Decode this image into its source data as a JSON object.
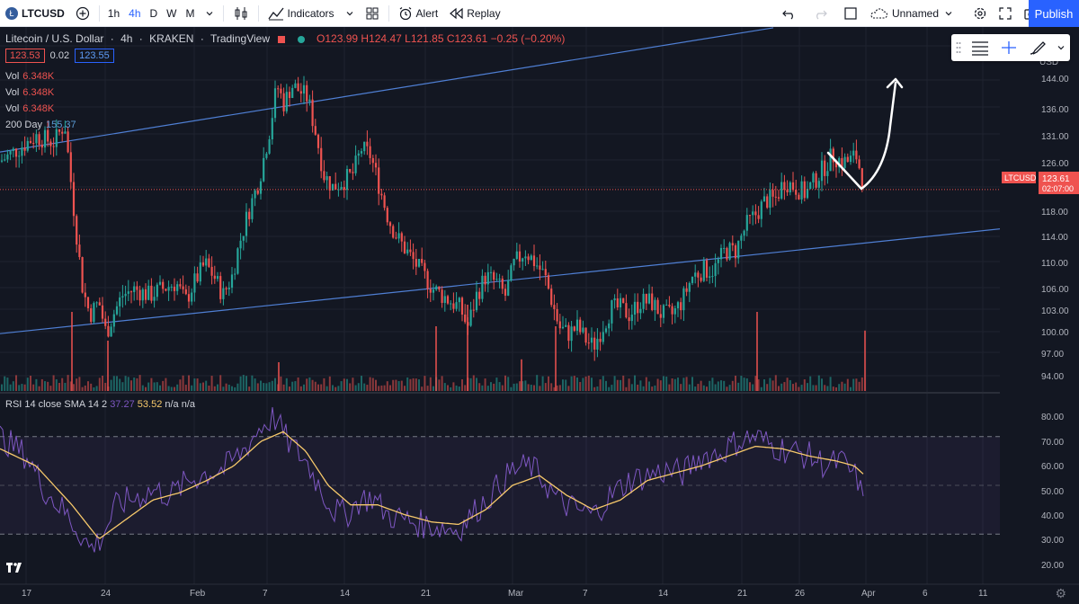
{
  "toolbar": {
    "symbol": "LTCUSD",
    "timeframes": [
      "1h",
      "4h",
      "D",
      "W",
      "M"
    ],
    "active_timeframe": "4h",
    "indicators_label": "Indicators",
    "alert_label": "Alert",
    "replay_label": "Replay",
    "layout_name": "Unnamed",
    "publish_label": "Publish"
  },
  "legend": {
    "title": "Litecoin / U.S. Dollar",
    "interval": "4h",
    "exchange": "KRAKEN",
    "source": "TradingView",
    "open": "O123.99",
    "high": "H124.47",
    "low": "L121.85",
    "close": "C123.61",
    "change": "−0.25 (−0.20%)",
    "bid": "123.53",
    "spread": "0.02",
    "ask": "123.55"
  },
  "indicators": [
    {
      "label": "Vol",
      "value": "6.348K"
    },
    {
      "label": "Vol",
      "value": "6.348K"
    },
    {
      "label": "Vol",
      "value": "6.348K"
    },
    {
      "label": "200 Day",
      "value": "155.37"
    }
  ],
  "rsi_legend": {
    "label": "RSI 14 close SMA 14 2",
    "rsi": "37.27",
    "sma": "53.52",
    "na1": "n/a",
    "na2": "n/a"
  },
  "price_axis": {
    "currency": "USD",
    "ticks": [
      "144.00",
      "136.00",
      "131.00",
      "126.00",
      "123.61",
      "118.00",
      "114.00",
      "110.00",
      "106.00",
      "103.00",
      "100.00",
      "97.00",
      "94.00"
    ],
    "last_label": "LTCUSD",
    "last_price": "123.61",
    "countdown": "02:07:00"
  },
  "rsi_axis": {
    "ticks": [
      "80.00",
      "70.00",
      "60.00",
      "50.00",
      "40.00",
      "30.00",
      "20.00"
    ]
  },
  "time_axis": {
    "ticks": [
      "17",
      "24",
      "Feb",
      "7",
      "14",
      "21",
      "Mar",
      "7",
      "14",
      "21",
      "26",
      "Apr",
      "6",
      "11"
    ]
  },
  "colors": {
    "background": "#131722",
    "up": "#26a69a",
    "down": "#ef5350",
    "trendline": "#4f7fd4",
    "rsi": "#7e57c2",
    "rsi_sma": "#f7c96b",
    "accent": "#2962ff"
  },
  "chart_data": {
    "type": "candlestick",
    "symbol": "LTCUSD",
    "interval": "4h",
    "y_range": [
      92,
      148
    ],
    "price_path": [
      [
        0,
        128
      ],
      [
        20,
        130
      ],
      [
        40,
        132
      ],
      [
        60,
        131
      ],
      [
        72,
        134
      ],
      [
        78,
        126
      ],
      [
        84,
        118
      ],
      [
        92,
        108
      ],
      [
        100,
        104
      ],
      [
        110,
        106
      ],
      [
        118,
        101
      ],
      [
        126,
        104
      ],
      [
        136,
        107
      ],
      [
        150,
        108
      ],
      [
        166,
        107
      ],
      [
        180,
        108
      ],
      [
        196,
        109
      ],
      [
        206,
        106
      ],
      [
        216,
        109
      ],
      [
        228,
        112
      ],
      [
        238,
        110
      ],
      [
        248,
        107
      ],
      [
        258,
        110
      ],
      [
        266,
        115
      ],
      [
        276,
        120
      ],
      [
        288,
        125
      ],
      [
        300,
        133
      ],
      [
        308,
        140
      ],
      [
        316,
        137
      ],
      [
        324,
        140
      ],
      [
        334,
        139
      ],
      [
        342,
        138
      ],
      [
        352,
        132
      ],
      [
        360,
        126
      ],
      [
        370,
        124
      ],
      [
        382,
        125
      ],
      [
        392,
        126
      ],
      [
        402,
        130
      ],
      [
        412,
        129
      ],
      [
        422,
        124
      ],
      [
        432,
        119
      ],
      [
        442,
        116
      ],
      [
        452,
        114
      ],
      [
        462,
        112
      ],
      [
        472,
        110
      ],
      [
        482,
        108
      ],
      [
        492,
        107
      ],
      [
        502,
        106
      ],
      [
        512,
        105
      ],
      [
        520,
        102
      ],
      [
        530,
        107
      ],
      [
        540,
        110
      ],
      [
        552,
        109
      ],
      [
        562,
        107
      ],
      [
        572,
        112
      ],
      [
        584,
        114
      ],
      [
        596,
        112
      ],
      [
        606,
        110
      ],
      [
        614,
        106
      ],
      [
        622,
        102
      ],
      [
        632,
        101
      ],
      [
        642,
        102
      ],
      [
        652,
        100
      ],
      [
        660,
        99
      ],
      [
        670,
        102
      ],
      [
        680,
        105
      ],
      [
        690,
        105
      ],
      [
        700,
        104
      ],
      [
        712,
        106
      ],
      [
        724,
        106
      ],
      [
        736,
        104
      ],
      [
        748,
        104
      ],
      [
        758,
        106
      ],
      [
        770,
        110
      ],
      [
        782,
        111
      ],
      [
        794,
        111
      ],
      [
        806,
        114
      ],
      [
        818,
        114
      ],
      [
        830,
        118
      ],
      [
        842,
        120
      ],
      [
        852,
        122
      ],
      [
        862,
        122
      ],
      [
        872,
        125
      ],
      [
        884,
        124
      ],
      [
        896,
        123
      ],
      [
        906,
        125
      ],
      [
        916,
        127
      ],
      [
        926,
        129
      ],
      [
        936,
        128
      ],
      [
        944,
        128
      ],
      [
        952,
        129
      ],
      [
        958,
        126
      ],
      [
        962,
        123.61
      ]
    ],
    "volume_spikes": [
      {
        "x": 80,
        "h": 0.55
      },
      {
        "x": 120,
        "h": 0.35
      },
      {
        "x": 310,
        "h": 0.2
      },
      {
        "x": 485,
        "h": 0.45
      },
      {
        "x": 520,
        "h": 0.6
      },
      {
        "x": 580,
        "h": 0.22
      },
      {
        "x": 618,
        "h": 0.45
      },
      {
        "x": 842,
        "h": 0.55
      },
      {
        "x": 962,
        "h": 0.42
      }
    ],
    "trendlines": [
      {
        "name": "upper",
        "x1": 0,
        "y1": 129.5,
        "x2": 860,
        "y2": 149
      },
      {
        "name": "lower",
        "x1": 0,
        "y1": 101,
        "x2": 1150,
        "y2": 118
      }
    ],
    "rsi_range": [
      15,
      85
    ],
    "rsi_path": [
      [
        0,
        70
      ],
      [
        30,
        62
      ],
      [
        50,
        48
      ],
      [
        70,
        40
      ],
      [
        90,
        30
      ],
      [
        100,
        24
      ],
      [
        112,
        28
      ],
      [
        130,
        42
      ],
      [
        150,
        45
      ],
      [
        170,
        48
      ],
      [
        190,
        46
      ],
      [
        210,
        52
      ],
      [
        230,
        55
      ],
      [
        250,
        57
      ],
      [
        270,
        64
      ],
      [
        290,
        74
      ],
      [
        305,
        78
      ],
      [
        320,
        68
      ],
      [
        340,
        60
      ],
      [
        355,
        50
      ],
      [
        370,
        40
      ],
      [
        385,
        38
      ],
      [
        400,
        44
      ],
      [
        415,
        45
      ],
      [
        430,
        38
      ],
      [
        450,
        36
      ],
      [
        470,
        34
      ],
      [
        490,
        33
      ],
      [
        510,
        32
      ],
      [
        530,
        40
      ],
      [
        550,
        48
      ],
      [
        570,
        56
      ],
      [
        590,
        58
      ],
      [
        605,
        52
      ],
      [
        620,
        44
      ],
      [
        640,
        40
      ],
      [
        660,
        38
      ],
      [
        680,
        46
      ],
      [
        700,
        52
      ],
      [
        720,
        54
      ],
      [
        740,
        56
      ],
      [
        760,
        55
      ],
      [
        780,
        62
      ],
      [
        800,
        63
      ],
      [
        820,
        68
      ],
      [
        840,
        70
      ],
      [
        860,
        66
      ],
      [
        880,
        64
      ],
      [
        900,
        62
      ],
      [
        920,
        58
      ],
      [
        935,
        60
      ],
      [
        945,
        56
      ],
      [
        955,
        52
      ],
      [
        962,
        37
      ]
    ],
    "rsi_sma_path": [
      [
        0,
        65
      ],
      [
        40,
        58
      ],
      [
        80,
        42
      ],
      [
        110,
        28
      ],
      [
        140,
        36
      ],
      [
        170,
        44
      ],
      [
        200,
        47
      ],
      [
        230,
        52
      ],
      [
        260,
        58
      ],
      [
        290,
        68
      ],
      [
        315,
        72
      ],
      [
        340,
        64
      ],
      [
        365,
        50
      ],
      [
        390,
        42
      ],
      [
        420,
        42
      ],
      [
        450,
        38
      ],
      [
        480,
        35
      ],
      [
        510,
        34
      ],
      [
        540,
        40
      ],
      [
        570,
        50
      ],
      [
        600,
        54
      ],
      [
        630,
        46
      ],
      [
        660,
        40
      ],
      [
        690,
        44
      ],
      [
        720,
        52
      ],
      [
        750,
        55
      ],
      [
        780,
        58
      ],
      [
        810,
        62
      ],
      [
        840,
        66
      ],
      [
        870,
        65
      ],
      [
        900,
        62
      ],
      [
        930,
        60
      ],
      [
        950,
        58
      ],
      [
        962,
        54
      ]
    ]
  }
}
